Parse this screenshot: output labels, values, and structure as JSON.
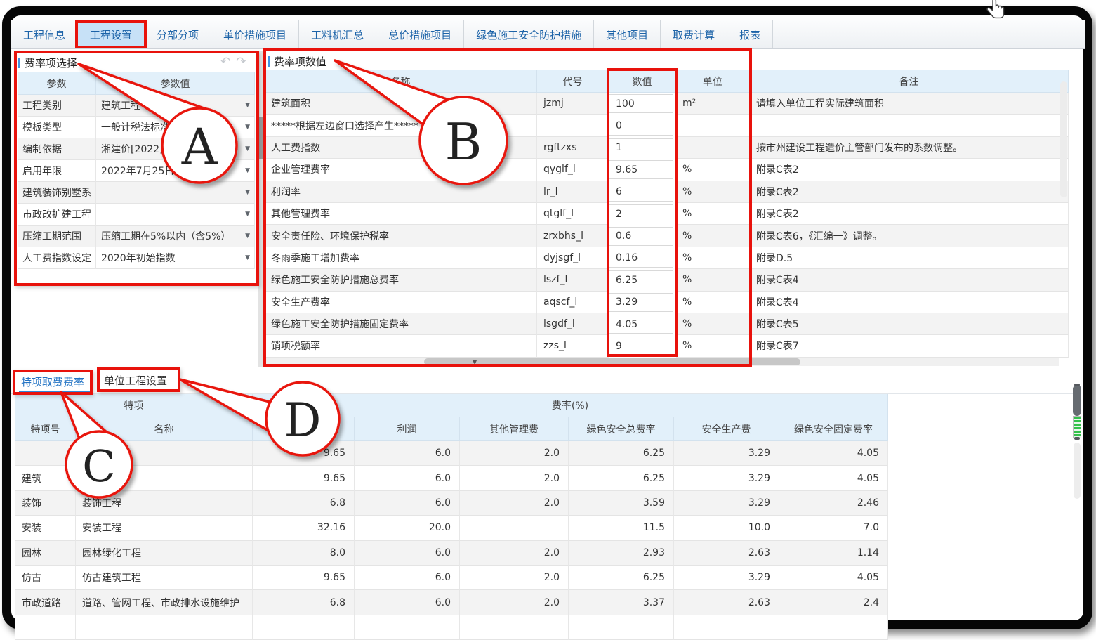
{
  "tabs": {
    "items": [
      {
        "label": "工程信息",
        "selected": false
      },
      {
        "label": "工程设置",
        "selected": true
      },
      {
        "label": "分部分项",
        "selected": false
      },
      {
        "label": "单价措施项目",
        "selected": false
      },
      {
        "label": "工料机汇总",
        "selected": false
      },
      {
        "label": "总价措施项目",
        "selected": false
      },
      {
        "label": "绿色施工安全防护措施",
        "selected": false
      },
      {
        "label": "其他项目",
        "selected": false
      },
      {
        "label": "取费计算",
        "selected": false
      },
      {
        "label": "报表",
        "selected": false
      }
    ]
  },
  "left_panel": {
    "title": "费率项选择",
    "icons": {
      "undo": "↶",
      "redo": "↷",
      "dropdown": "▼"
    },
    "columns": [
      "参数",
      "参数值"
    ],
    "rows": [
      {
        "param": "工程类别",
        "value": "建筑工程",
        "dropdown": true
      },
      {
        "param": "模板类型",
        "value": "一般计税法标准模板",
        "dropdown": true
      },
      {
        "param": "编制依据",
        "value": "湘建价[2022]",
        "dropdown": true
      },
      {
        "param": "启用年限",
        "value": "2022年7月25日",
        "dropdown": true
      },
      {
        "param": "建筑装饰别墅系",
        "value": "",
        "dropdown": true
      },
      {
        "param": "市政改扩建工程",
        "value": "",
        "dropdown": true
      },
      {
        "param": "压缩工期范围",
        "value": "压缩工期在5%以内（含5%）",
        "dropdown": true
      },
      {
        "param": "人工费指数设定",
        "value": "2020年初始指数",
        "dropdown": true
      }
    ]
  },
  "right_panel": {
    "title": "费率项数值",
    "columns": [
      "名称",
      "代号",
      "数值",
      "单位",
      "备注"
    ],
    "rows": [
      {
        "name": "建筑面积",
        "code": "jzmj",
        "value": "100",
        "unit": "m²",
        "remark": "请填入单位工程实际建筑面积"
      },
      {
        "name": "*****根据左边窗口选择产生*****",
        "code": "",
        "value": "0",
        "unit": "",
        "remark": ""
      },
      {
        "name": "人工费指数",
        "code": "rgftzxs",
        "value": "1",
        "unit": "",
        "remark": "按市州建设工程造价主管部门发布的系数调整。"
      },
      {
        "name": "企业管理费率",
        "code": "qyglf_l",
        "value": "9.65",
        "unit": "%",
        "remark": "附录C表2"
      },
      {
        "name": "利润率",
        "code": "lr_l",
        "value": "6",
        "unit": "%",
        "remark": "附录C表2"
      },
      {
        "name": "其他管理费率",
        "code": "qtglf_l",
        "value": "2",
        "unit": "%",
        "remark": "附录C表2"
      },
      {
        "name": "安全责任险、环境保护税率",
        "code": "zrxbhs_l",
        "value": "0.6",
        "unit": "%",
        "remark": "附录C表6，《汇编一》调整。"
      },
      {
        "name": "冬雨季施工增加费率",
        "code": "dyjsgf_l",
        "value": "0.16",
        "unit": "%",
        "remark": "附录D.5"
      },
      {
        "name": "绿色施工安全防护措施总费率",
        "code": "lszf_l",
        "value": "6.25",
        "unit": "%",
        "remark": "附录C表4"
      },
      {
        "name": "安全生产费率",
        "code": "aqscf_l",
        "value": "3.29",
        "unit": "%",
        "remark": "附录C表4"
      },
      {
        "name": "绿色施工安全防护措施固定费率",
        "code": "lsgdf_l",
        "value": "4.05",
        "unit": "%",
        "remark": "附录C表5"
      },
      {
        "name": "销项税额率",
        "code": "zzs_l",
        "value": "9",
        "unit": "%",
        "remark": "附录C表7"
      }
    ]
  },
  "bottom_panel": {
    "tabs": [
      {
        "label": "特项取费费率",
        "selected": true
      },
      {
        "label": "单位工程设置",
        "selected": false
      }
    ],
    "group_headers": {
      "special": "特项",
      "rate": "费率(%)"
    },
    "sub_headers": [
      "特项号",
      "名称",
      "",
      "利润",
      "其他管理费",
      "绿色安全总费率",
      "安全生产费",
      "绿色安全固定费率"
    ],
    "rows": [
      {
        "no": "",
        "name": "",
        "values": [
          "9.65",
          "6.0",
          "2.0",
          "6.25",
          "3.29",
          "4.05"
        ]
      },
      {
        "no": "建筑",
        "name": "",
        "values": [
          "9.65",
          "6.0",
          "2.0",
          "6.25",
          "3.29",
          "4.05"
        ]
      },
      {
        "no": "装饰",
        "name": "装饰工程",
        "values": [
          "6.8",
          "6.0",
          "2.0",
          "3.59",
          "3.29",
          "2.46"
        ]
      },
      {
        "no": "安装",
        "name": "安装工程",
        "values": [
          "32.16",
          "20.0",
          "",
          "11.5",
          "10.0",
          "7.0"
        ]
      },
      {
        "no": "园林",
        "name": "园林绿化工程",
        "values": [
          "8.0",
          "6.0",
          "2.0",
          "2.93",
          "2.63",
          "1.14"
        ]
      },
      {
        "no": "仿古",
        "name": "仿古建筑工程",
        "values": [
          "9.65",
          "6.0",
          "2.0",
          "6.25",
          "3.29",
          "4.05"
        ]
      },
      {
        "no": "市政道路",
        "name": "道路、管网工程、市政排水设施维护",
        "values": [
          "6.8",
          "6.0",
          "2.0",
          "3.37",
          "2.63",
          "2.4"
        ]
      }
    ]
  },
  "annotations": {
    "letters": [
      "A",
      "B",
      "C",
      "D"
    ],
    "color": "#e8120c"
  },
  "colors": {
    "tab_text": "#1c63a8",
    "tab_selected_bg": "#c7e1f7",
    "header_bg": "#e2f0fa",
    "annotation_red": "#e8120c",
    "green_stripe": "#34c24b"
  }
}
